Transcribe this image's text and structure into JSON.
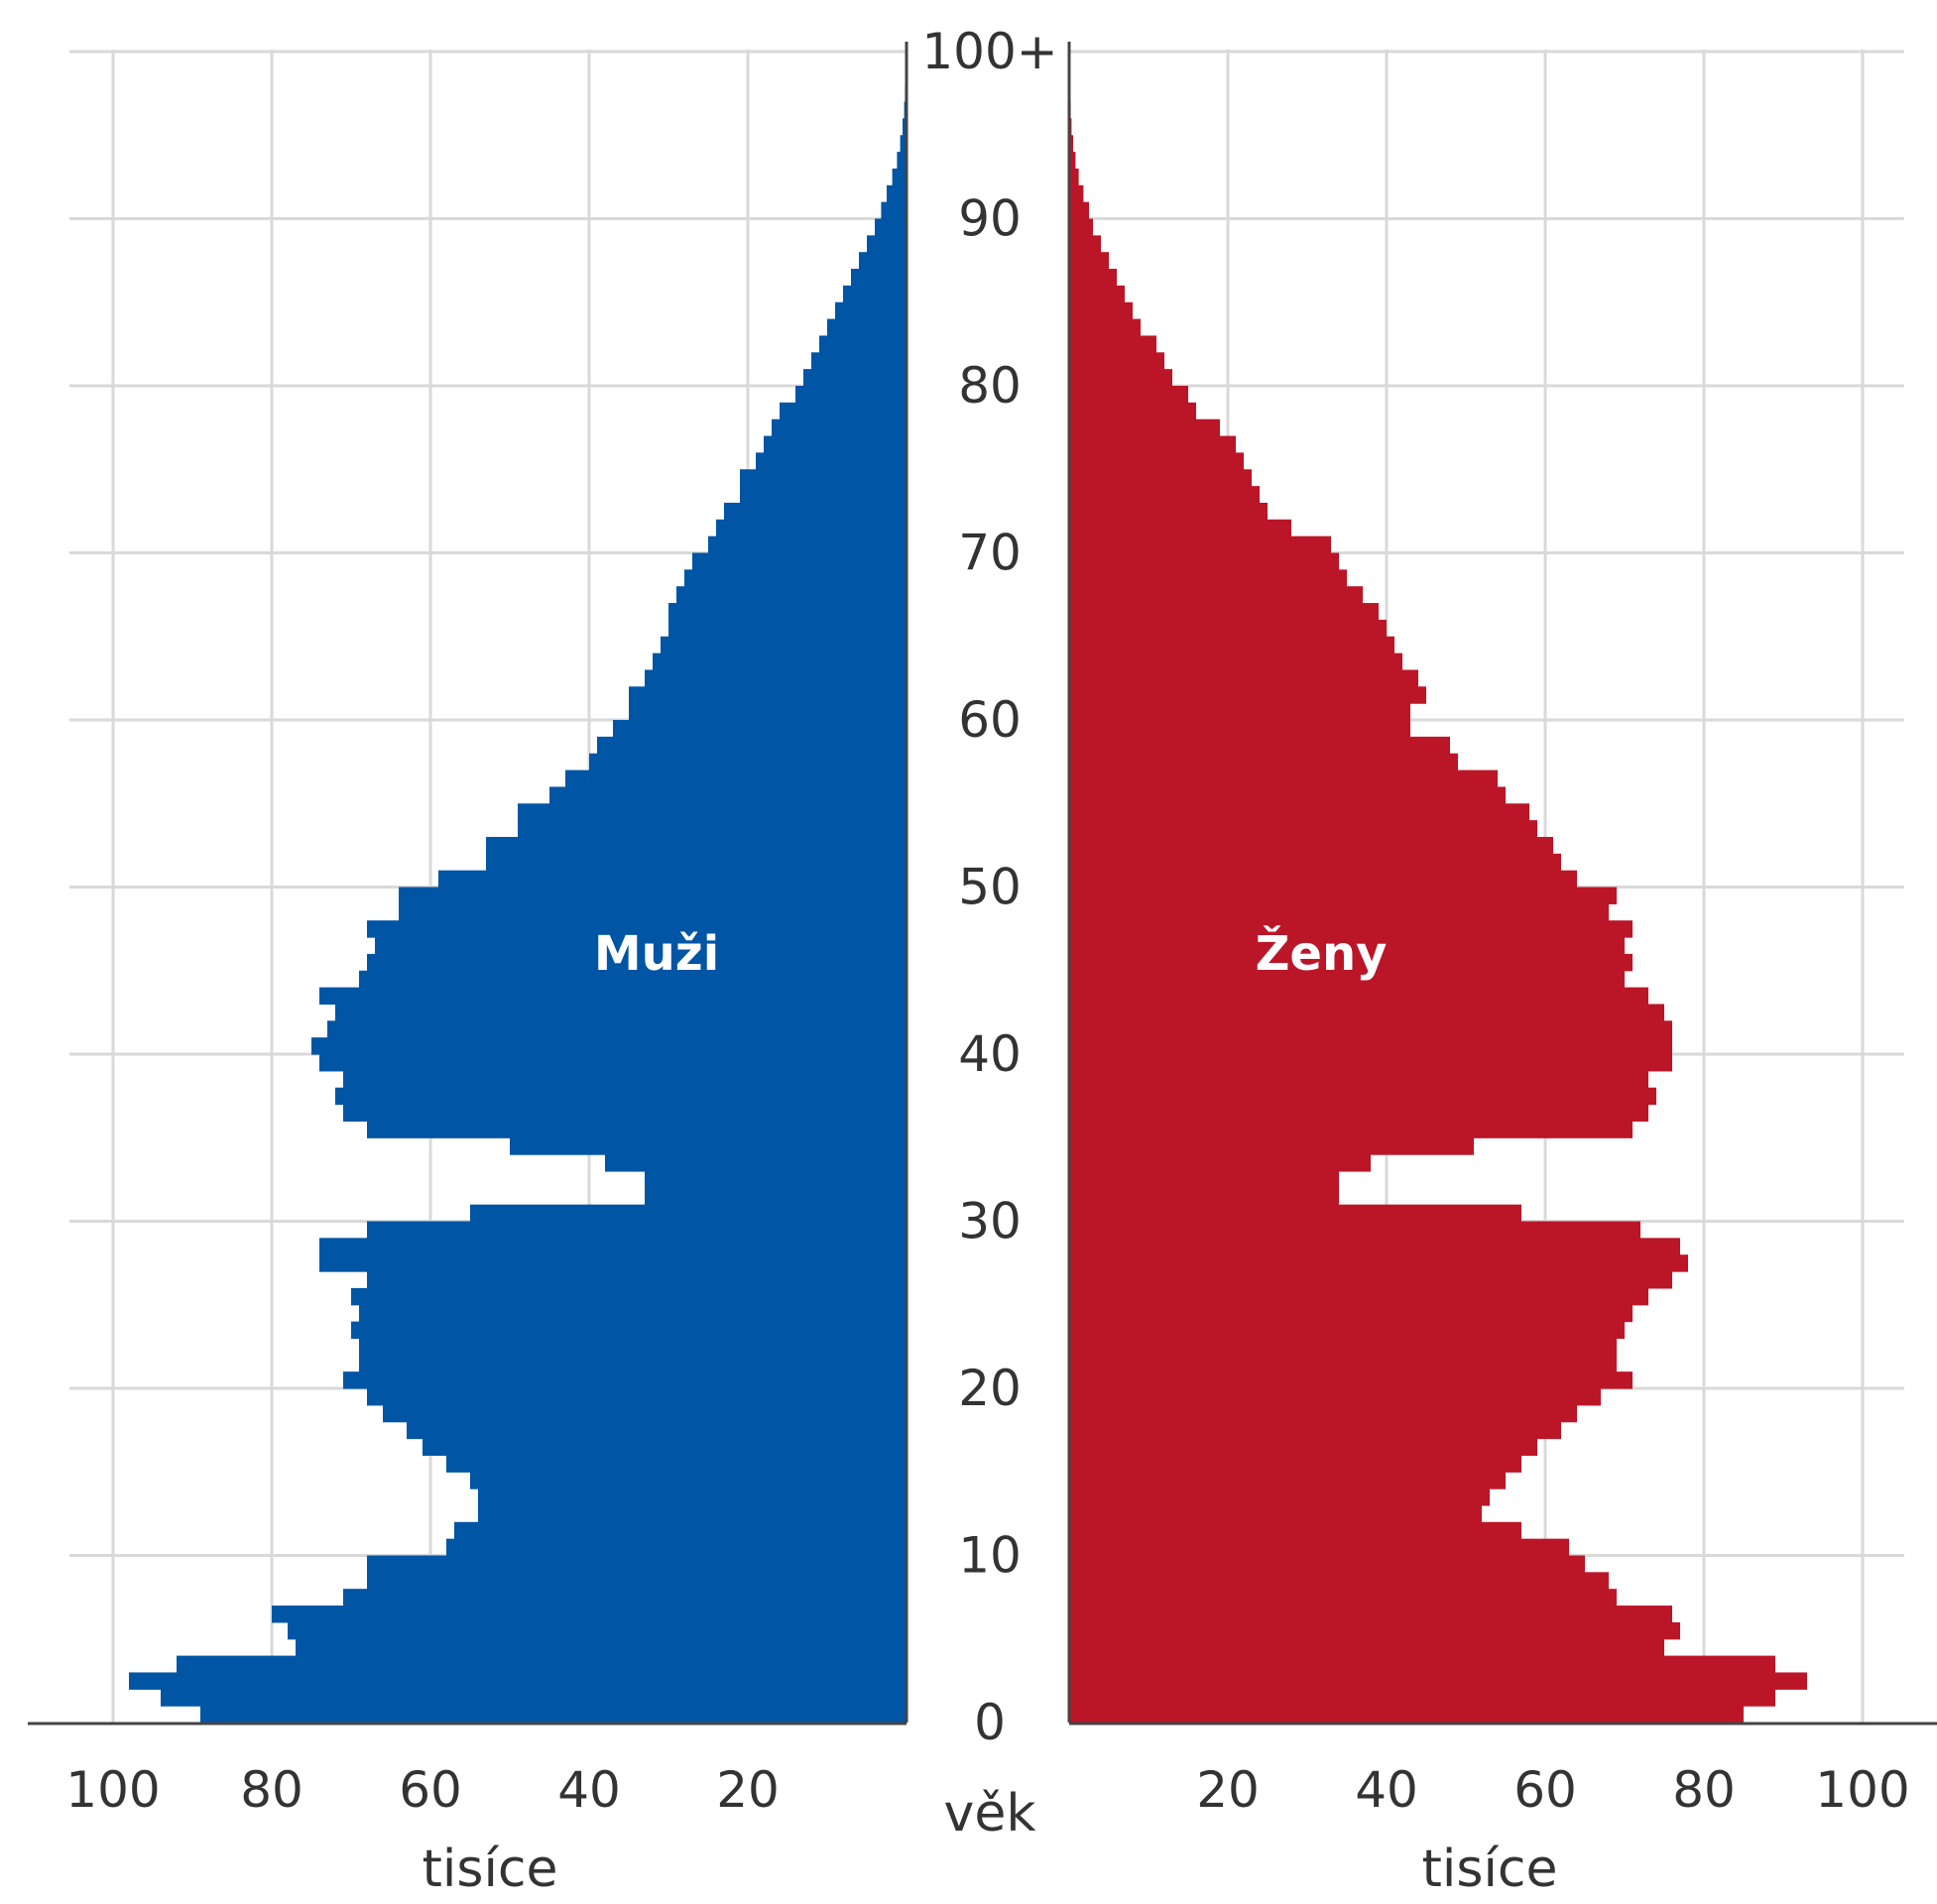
{
  "chart_data": {
    "type": "bar",
    "subtype": "population-pyramid",
    "orientation": "horizontal",
    "age_axis": {
      "label": "věk",
      "range": [
        0,
        100
      ],
      "tick_values": [
        0,
        10,
        20,
        30,
        40,
        50,
        60,
        70,
        80,
        90,
        100
      ],
      "tick_labels": [
        "0",
        "10",
        "20",
        "30",
        "40",
        "50",
        "60",
        "70",
        "80",
        "90",
        "100+"
      ]
    },
    "value_axis": {
      "label": "tisíce",
      "range": [
        0,
        105
      ],
      "tick_values": [
        20,
        40,
        60,
        80,
        100
      ],
      "tick_labels_left": [
        "100",
        "80",
        "60",
        "40",
        "20"
      ],
      "tick_labels_right": [
        "20",
        "40",
        "60",
        "80",
        "100"
      ]
    },
    "grid": true,
    "colors": {
      "Muži": "#0055a4",
      "Ženy": "#bb1628",
      "grid": "#d9d9d9",
      "axis": "#444444"
    },
    "ages": [
      0,
      1,
      2,
      3,
      4,
      5,
      6,
      7,
      8,
      9,
      10,
      11,
      12,
      13,
      14,
      15,
      16,
      17,
      18,
      19,
      20,
      21,
      22,
      23,
      24,
      25,
      26,
      27,
      28,
      29,
      30,
      31,
      32,
      33,
      34,
      35,
      36,
      37,
      38,
      39,
      40,
      41,
      42,
      43,
      44,
      45,
      46,
      47,
      48,
      49,
      50,
      51,
      52,
      53,
      54,
      55,
      56,
      57,
      58,
      59,
      60,
      61,
      62,
      63,
      64,
      65,
      66,
      67,
      68,
      69,
      70,
      71,
      72,
      73,
      74,
      75,
      76,
      77,
      78,
      79,
      80,
      81,
      82,
      83,
      84,
      85,
      86,
      87,
      88,
      89,
      90,
      91,
      92,
      93,
      94,
      95,
      96,
      97,
      98,
      99
    ],
    "series": [
      {
        "name": "Muži",
        "side": "left",
        "values": [
          89,
          94,
          98,
          92,
          77,
          78,
          80,
          71,
          68,
          68,
          58,
          57,
          54,
          54,
          55,
          58,
          61,
          63,
          66,
          68,
          71,
          69,
          69,
          70,
          69,
          70,
          68,
          74,
          74,
          68,
          55,
          33,
          33,
          38,
          50,
          68,
          71,
          72,
          71,
          74,
          75,
          73,
          72,
          74,
          69,
          68,
          67,
          68,
          64,
          64,
          59,
          53,
          53,
          49,
          49,
          45,
          43,
          40,
          39,
          37,
          35,
          35,
          33,
          32,
          31,
          30,
          30,
          29,
          28,
          27,
          25,
          24,
          23,
          21,
          21,
          19,
          18,
          17,
          16,
          14,
          13,
          12,
          11,
          10,
          9,
          8,
          7,
          6,
          5,
          4,
          3.2,
          2.5,
          1.8,
          1.2,
          0.8,
          0.5,
          0.3,
          0.2,
          0.1,
          0.05
        ]
      },
      {
        "name": "Ženy",
        "side": "right",
        "values": [
          85,
          89,
          93,
          89,
          75,
          77,
          76,
          69,
          68,
          65,
          63,
          57,
          52,
          53,
          55,
          57,
          59,
          62,
          64,
          67,
          71,
          69,
          69,
          70,
          71,
          73,
          76,
          78,
          77,
          72,
          57,
          34,
          34,
          38,
          51,
          71,
          73,
          74,
          73,
          76,
          76,
          76,
          75,
          73,
          70,
          71,
          70,
          71,
          68,
          69,
          64,
          62,
          61,
          59,
          58,
          55,
          54,
          49,
          48,
          43,
          43,
          45,
          44,
          42,
          41,
          40,
          39,
          37,
          35,
          34,
          33,
          28,
          25,
          24,
          23,
          22,
          21,
          19,
          16,
          15,
          13,
          12,
          11,
          9,
          8,
          7,
          6,
          5,
          4,
          3,
          2.5,
          1.8,
          1.2,
          0.8,
          0.5,
          0.3,
          0.2,
          0.1,
          0.05,
          0.03
        ]
      }
    ]
  }
}
